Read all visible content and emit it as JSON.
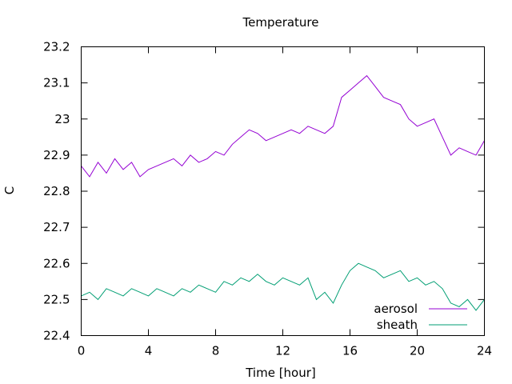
{
  "chart_data": {
    "type": "line",
    "title": "Temperature",
    "xlabel": "Time [hour]",
    "ylabel": "C",
    "xlim": [
      0,
      24
    ],
    "ylim": [
      22.4,
      23.2
    ],
    "xticks": [
      0,
      4,
      8,
      12,
      16,
      20,
      24
    ],
    "xtick_labels": [
      "0",
      "4",
      "8",
      "12",
      "16",
      "20",
      "24"
    ],
    "yticks": [
      22.4,
      22.5,
      22.6,
      22.7,
      22.8,
      22.9,
      23.0,
      23.1,
      23.2
    ],
    "ytick_labels": [
      "22.4",
      "22.5",
      "22.6",
      "22.7",
      "22.8",
      "22.9",
      "23",
      "23.1",
      "23.2"
    ],
    "grid": false,
    "legend_position": "bottom-right",
    "series": [
      {
        "name": "aerosol",
        "color": "#9400d3",
        "x": [
          0,
          0.5,
          1,
          1.5,
          2,
          2.5,
          3,
          3.5,
          4,
          4.5,
          5,
          5.5,
          6,
          6.5,
          7,
          7.5,
          8,
          8.5,
          9,
          9.5,
          10,
          10.5,
          11,
          11.5,
          12,
          12.5,
          13,
          13.5,
          14,
          14.5,
          15,
          15.5,
          16,
          16.5,
          17,
          17.5,
          18,
          18.5,
          19,
          19.5,
          20,
          20.5,
          21,
          21.5,
          22,
          22.5,
          23,
          23.5,
          24
        ],
        "values": [
          22.87,
          22.84,
          22.88,
          22.85,
          22.89,
          22.86,
          22.88,
          22.84,
          22.86,
          22.87,
          22.88,
          22.89,
          22.87,
          22.9,
          22.88,
          22.89,
          22.91,
          22.9,
          22.93,
          22.95,
          22.97,
          22.96,
          22.94,
          22.95,
          22.96,
          22.97,
          22.96,
          22.98,
          22.97,
          22.96,
          22.98,
          23.06,
          23.08,
          23.1,
          23.12,
          23.09,
          23.06,
          23.05,
          23.04,
          23.0,
          22.98,
          22.99,
          23.0,
          22.95,
          22.9,
          22.92,
          22.91,
          22.9,
          22.94
        ]
      },
      {
        "name": "sheath",
        "color": "#009e73",
        "x": [
          0,
          0.5,
          1,
          1.5,
          2,
          2.5,
          3,
          3.5,
          4,
          4.5,
          5,
          5.5,
          6,
          6.5,
          7,
          7.5,
          8,
          8.5,
          9,
          9.5,
          10,
          10.5,
          11,
          11.5,
          12,
          12.5,
          13,
          13.5,
          14,
          14.5,
          15,
          15.5,
          16,
          16.5,
          17,
          17.5,
          18,
          18.5,
          19,
          19.5,
          20,
          20.5,
          21,
          21.5,
          22,
          22.5,
          23,
          23.5,
          24
        ],
        "values": [
          22.51,
          22.52,
          22.5,
          22.53,
          22.52,
          22.51,
          22.53,
          22.52,
          22.51,
          22.53,
          22.52,
          22.51,
          22.53,
          22.52,
          22.54,
          22.53,
          22.52,
          22.55,
          22.54,
          22.56,
          22.55,
          22.57,
          22.55,
          22.54,
          22.56,
          22.55,
          22.54,
          22.56,
          22.5,
          22.52,
          22.49,
          22.54,
          22.58,
          22.6,
          22.59,
          22.58,
          22.56,
          22.57,
          22.58,
          22.55,
          22.56,
          22.54,
          22.55,
          22.53,
          22.49,
          22.48,
          22.5,
          22.47,
          22.5
        ]
      }
    ]
  }
}
